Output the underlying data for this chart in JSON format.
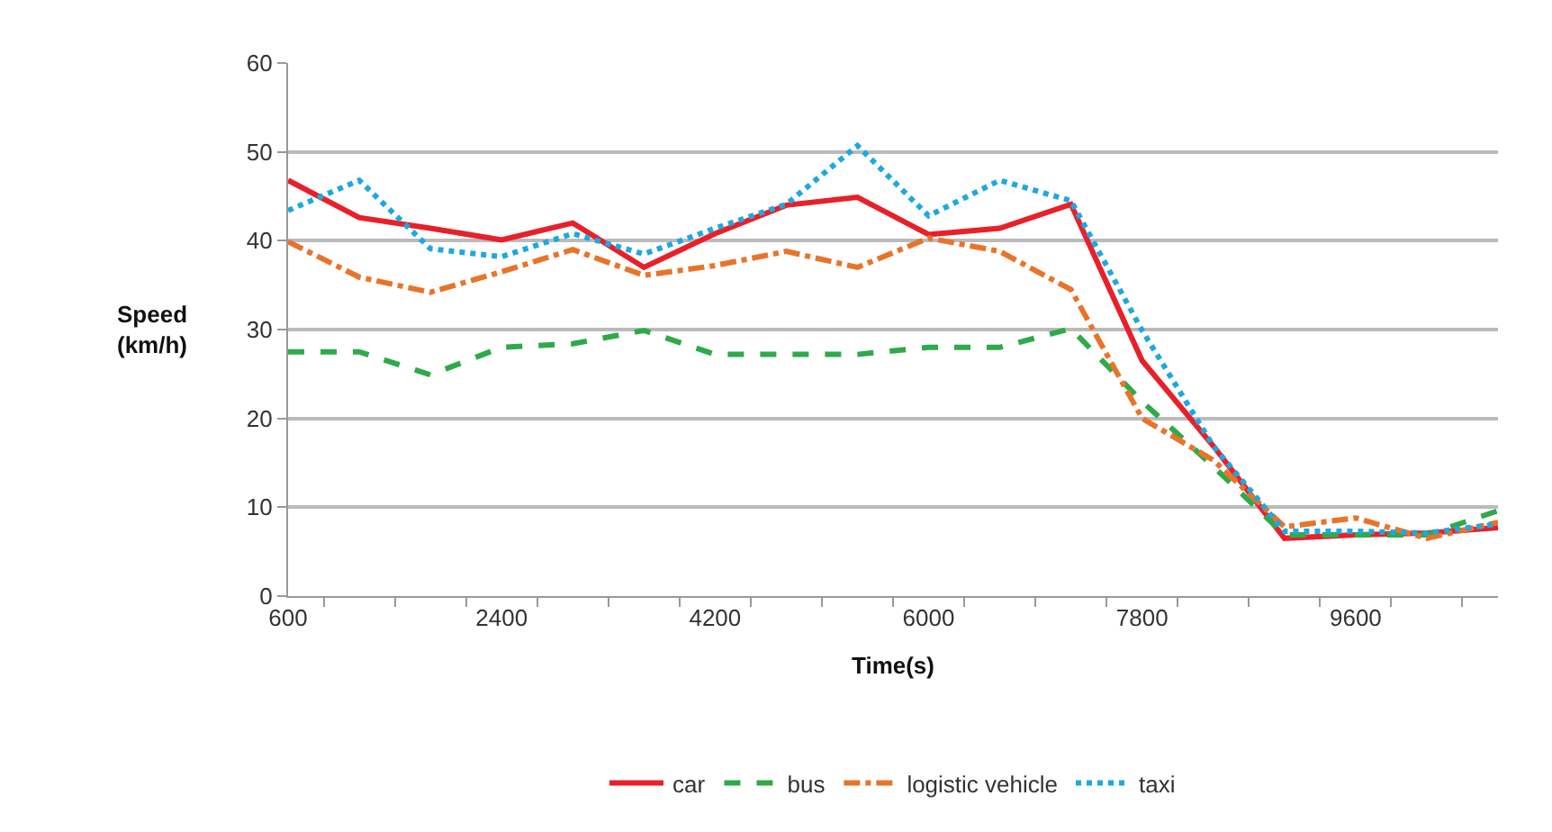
{
  "chart_data": {
    "type": "line",
    "xlabel": "Time(s)",
    "ylabel": "Speed\n(km/h)",
    "categories": [
      "600",
      null,
      null,
      "2400",
      null,
      null,
      "4200",
      null,
      null,
      "6000",
      null,
      null,
      "7800",
      null,
      null,
      "9600",
      null,
      null
    ],
    "series": [
      {
        "name": "car",
        "color": "#e8202a",
        "line_style": "solid",
        "values": [
          46.8,
          42.6,
          41.4,
          40.1,
          42,
          37,
          40.8,
          44,
          44.9,
          40.7,
          41.4,
          44.1,
          26.5,
          16.9,
          6.5,
          6.9,
          7.1,
          7.7
        ]
      },
      {
        "name": "bus",
        "color": "#2eaa4a",
        "line_style": "dashed",
        "values": [
          27.5,
          27.5,
          24.9,
          28,
          28.4,
          29.9,
          27.2,
          27.2,
          27.2,
          28,
          28,
          30.1,
          21.9,
          14.6,
          6.9,
          6.9,
          6.9,
          9.6
        ]
      },
      {
        "name": "logistic vehicle",
        "color": "#e8742a",
        "line_style": "dashdot",
        "values": [
          39.9,
          35.9,
          34.2,
          36.5,
          39,
          36.1,
          37.2,
          38.8,
          37,
          40.3,
          38.8,
          34.5,
          20,
          15.3,
          7.8,
          8.8,
          6.5,
          8.3
        ]
      },
      {
        "name": "taxi",
        "color": "#1ea8e0",
        "line_style": "dotted",
        "values": [
          43.4,
          46.8,
          39.1,
          38.2,
          40.8,
          38.5,
          41.4,
          44.1,
          50.7,
          42.8,
          46.8,
          44.5,
          29.9,
          16.9,
          7.3,
          7.3,
          7.1,
          8.1
        ]
      }
    ],
    "ylim": [
      0,
      60
    ],
    "yticks": [
      0,
      10,
      20,
      30,
      40,
      50,
      60
    ],
    "grid": "y",
    "legend": "bottom",
    "marker": "none"
  }
}
